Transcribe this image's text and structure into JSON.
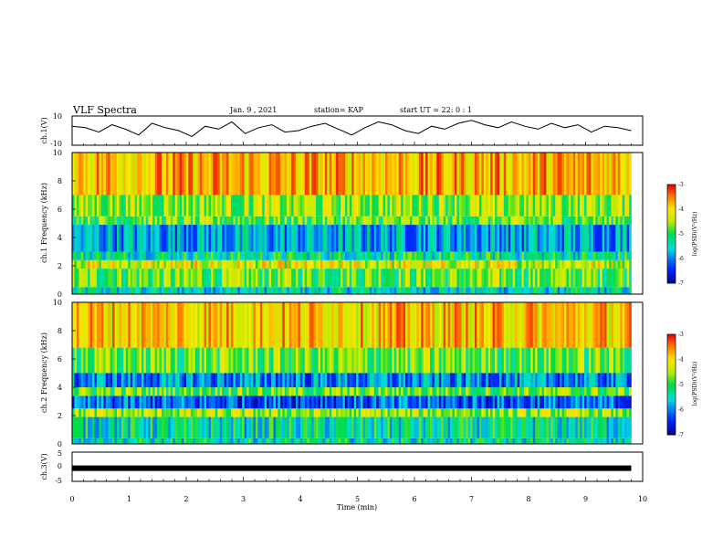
{
  "header": {
    "title": "VLF Spectra",
    "date": "Jan. 9 , 2021",
    "station": "station= KAP",
    "start_ut": "start UT = 22: 0 : 1"
  },
  "chart_data": [
    {
      "type": "line",
      "panel": "ch1-waveform",
      "ylabel": "ch.1(V)",
      "ylim": [
        -10,
        10
      ],
      "yticks": [
        "10",
        "-10"
      ],
      "xlim": [
        0,
        10
      ],
      "x_end": 9.8,
      "series": [
        {
          "values": [
            3,
            2,
            -1,
            4,
            1,
            -3,
            5,
            2,
            0,
            -4,
            3,
            1,
            6,
            -2,
            2,
            4,
            -1,
            0,
            3,
            5,
            1,
            -3,
            2,
            6,
            4,
            0,
            -2,
            3,
            1,
            5,
            7,
            4,
            2,
            6,
            3,
            1,
            5,
            2,
            4,
            -1,
            3,
            2,
            0
          ]
        }
      ]
    },
    {
      "type": "heatmap",
      "panel": "ch1-spectrogram",
      "ylabel": "ch.1 Frequency (kHz)",
      "ylim": [
        0,
        10
      ],
      "yticks": [
        "0",
        "2",
        "4",
        "6",
        "8",
        "10"
      ],
      "xlim": [
        0,
        10
      ],
      "x_end": 9.8,
      "colorbar": {
        "label": "log(PSD)(V²/Hz)",
        "range": [
          -7,
          -3
        ],
        "ticks": [
          "-3",
          "-4",
          "-5",
          "-6",
          "-7"
        ]
      },
      "bands": [
        {
          "from": 0,
          "to": 0.5,
          "level": -5.5
        },
        {
          "from": 0.5,
          "to": 1.8,
          "level": -4.8
        },
        {
          "from": 1.8,
          "to": 2.4,
          "level": -4.3
        },
        {
          "from": 2.4,
          "to": 3.0,
          "level": -5.3
        },
        {
          "from": 3.0,
          "to": 4.9,
          "level": -5.8
        },
        {
          "from": 4.9,
          "to": 5.5,
          "level": -4.8
        },
        {
          "from": 5.5,
          "to": 7.0,
          "level": -4.6
        },
        {
          "from": 7.0,
          "to": 10.0,
          "level": -3.8
        }
      ]
    },
    {
      "type": "heatmap",
      "panel": "ch2-spectrogram",
      "ylabel": "ch.2 Frequency (kHz)",
      "ylim": [
        0,
        10
      ],
      "yticks": [
        "0",
        "2",
        "4",
        "6",
        "8",
        "10"
      ],
      "xlim": [
        0,
        10
      ],
      "x_end": 9.8,
      "colorbar": {
        "label": "log(PSD)(V²/Hz)",
        "range": [
          -7,
          -3
        ],
        "ticks": [
          "-3",
          "-4",
          "-5",
          "-6",
          "-7"
        ]
      },
      "bands": [
        {
          "from": 0,
          "to": 0.4,
          "level": -5.4
        },
        {
          "from": 0.4,
          "to": 1.9,
          "level": -5.4
        },
        {
          "from": 1.9,
          "to": 2.5,
          "level": -4.6
        },
        {
          "from": 2.5,
          "to": 3.4,
          "level": -6.2
        },
        {
          "from": 3.4,
          "to": 4.0,
          "level": -4.8
        },
        {
          "from": 4.0,
          "to": 5.0,
          "level": -6.0
        },
        {
          "from": 5.0,
          "to": 6.8,
          "level": -4.8
        },
        {
          "from": 6.8,
          "to": 10.0,
          "level": -3.9
        }
      ]
    },
    {
      "type": "line",
      "panel": "ch3-waveform",
      "ylabel": "ch.3(V)",
      "ylim": [
        -5,
        5
      ],
      "yticks": [
        "5",
        "0",
        "-5"
      ],
      "xlim": [
        0,
        10
      ],
      "x_end": 9.8,
      "series": [
        {
          "values": [
            -0.5,
            -0.5
          ]
        }
      ],
      "xlabel": "Time (min)",
      "xticks": [
        "0",
        "1",
        "2",
        "3",
        "4",
        "5",
        "6",
        "7",
        "8",
        "9",
        "10"
      ]
    }
  ]
}
